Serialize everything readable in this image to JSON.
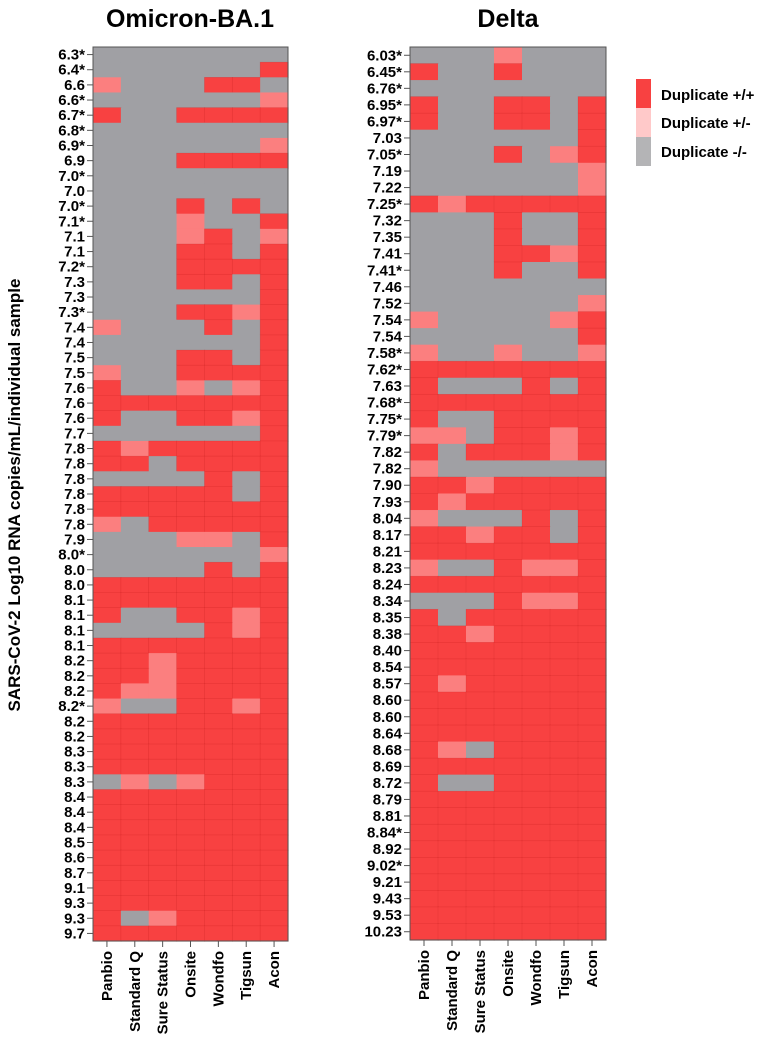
{
  "chart_data": [
    {
      "type": "heatmap",
      "title": "Omicron-BA.1",
      "ylabel": "SARS-CoV-2 Log10 RNA copies/mL/individual sample",
      "columns": [
        "Panbio",
        "Standard Q",
        "Sure Status",
        "Onsite",
        "Wondfo",
        "Tigsun",
        "Acon"
      ],
      "rows": [
        "6.3*",
        "6.4*",
        "6.6",
        "6.6*",
        "6.7*",
        "6.8*",
        "6.9*",
        "6.9",
        "7.0*",
        "7.0",
        "7.0*",
        "7.1*",
        "7.1",
        "7.1",
        "7.2*",
        "7.3",
        "7.3",
        "7.3*",
        "7.4",
        "7.4",
        "7.5",
        "7.5",
        "7.6",
        "7.6",
        "7.6",
        "7.7",
        "7.8",
        "7.8",
        "7.8",
        "7.8",
        "7.8",
        "7.8",
        "7.9",
        "8.0*",
        "8.0",
        "8.0",
        "8.1",
        "8.1",
        "8.1",
        "8.1",
        "8.2",
        "8.2",
        "8.2",
        "8.2*",
        "8.2",
        "8.2",
        "8.3",
        "8.3",
        "8.3",
        "8.4",
        "8.4",
        "8.4",
        "8.5",
        "8.6",
        "8.7",
        "9.1",
        "9.3",
        "9.3",
        "9.7"
      ],
      "matrix": [
        "0000000",
        "0000002",
        "1000220",
        "0000001",
        "2002222",
        "0000000",
        "0000001",
        "0002222",
        "0000000",
        "0000000",
        "0002020",
        "0001002",
        "0001201",
        "0002202",
        "0002222",
        "0002202",
        "0000002",
        "0002212",
        "1000202",
        "0000002",
        "0002202",
        "1002222",
        "2001012",
        "2222222",
        "2002212",
        "0000002",
        "2122222",
        "2202222",
        "0000202",
        "2222202",
        "2222222",
        "1022222",
        "0001102",
        "0000001",
        "0000202",
        "2222222",
        "2222222",
        "2002212",
        "0000212",
        "2222222",
        "2212222",
        "2212222",
        "2112222",
        "1002212",
        "2222222",
        "2222222",
        "2222222",
        "2222222",
        "0101222",
        "2222222",
        "2222222",
        "2222222",
        "2222222",
        "2222222",
        "2222222",
        "2222222",
        "2222222",
        "2012222",
        "2222222"
      ]
    },
    {
      "type": "heatmap",
      "title": "Delta",
      "columns": [
        "Panbio",
        "Standard Q",
        "Sure Status",
        "Onsite",
        "Wondfo",
        "Tigsun",
        "Acon"
      ],
      "rows": [
        "6.03*",
        "6.45*",
        "6.76*",
        "6.95*",
        "6.97*",
        "7.03",
        "7.05*",
        "7.19",
        "7.22",
        "7.25*",
        "7.32",
        "7.35",
        "7.41",
        "7.41*",
        "7.46",
        "7.52",
        "7.54",
        "7.54",
        "7.58*",
        "7.62*",
        "7.63",
        "7.68*",
        "7.75*",
        "7.79*",
        "7.82",
        "7.82",
        "7.90",
        "7.93",
        "8.04",
        "8.17",
        "8.21",
        "8.23",
        "8.24",
        "8.34",
        "8.35",
        "8.38",
        "8.40",
        "8.54",
        "8.57",
        "8.60",
        "8.60",
        "8.64",
        "8.68",
        "8.69",
        "8.72",
        "8.79",
        "8.81",
        "8.84*",
        "8.92",
        "9.02*",
        "9.21",
        "9.43",
        "9.53",
        "10.23"
      ],
      "matrix": [
        "0001000",
        "2002000",
        "0000000",
        "2002202",
        "2002202",
        "0000002",
        "0002012",
        "0000001",
        "0000001",
        "2122222",
        "0002002",
        "0002002",
        "0002212",
        "0002002",
        "0000000",
        "0000001",
        "1000012",
        "0000002",
        "1001001",
        "2222222",
        "2000202",
        "2222222",
        "2002222",
        "1102212",
        "2022212",
        "1000000",
        "2212222",
        "2122222",
        "1000202",
        "2212202",
        "2222222",
        "1002112",
        "2222222",
        "0002112",
        "2022222",
        "2212222",
        "2222222",
        "2222222",
        "2122222",
        "2222222",
        "2222222",
        "2222222",
        "2102222",
        "2222222",
        "2002222",
        "2222222",
        "2222222",
        "2222222",
        "2222222",
        "2222222",
        "2222222",
        "2222222",
        "2222222",
        "2222222"
      ]
    }
  ],
  "legend": [
    {
      "code": "2",
      "label": "Duplicate +/+",
      "color": "#F84141",
      "swatch": "#F84141"
    },
    {
      "code": "1",
      "label": "Duplicate +/-",
      "color": "#FB7F7F",
      "swatch": "#FFC9C9"
    },
    {
      "code": "0",
      "label": "Duplicate -/-",
      "color": "#A0A0A4",
      "swatch": "#B4B4B6"
    }
  ]
}
